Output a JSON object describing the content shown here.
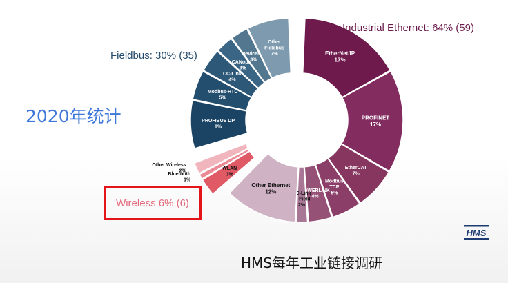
{
  "titles": {
    "left": "2020年统计",
    "bottom": "HMS每年工业链接调研"
  },
  "logo": {
    "text": "HMS"
  },
  "chart_data": {
    "type": "pie",
    "subtype": "donut",
    "groups": [
      {
        "name": "Industrial Ethernet",
        "label": "Industrial Ethernet: 64% (59)",
        "color": "#7a2454"
      },
      {
        "name": "Fieldbus",
        "label": "Fieldbus: 30% (35)",
        "color": "#1f4a6c"
      },
      {
        "name": "Wireless",
        "label": "Wireless 6% (6)",
        "color": "#e05565"
      }
    ],
    "slices": [
      {
        "name": "EtherNet/IP",
        "value": 17,
        "group": "Industrial Ethernet",
        "color": "#6e1a4d",
        "label_outside": false
      },
      {
        "name": "PROFINET",
        "value": 17,
        "group": "Industrial Ethernet",
        "color": "#822c5f",
        "label_outside": false
      },
      {
        "name": "EtherCAT",
        "value": 7,
        "group": "Industrial Ethernet",
        "color": "#86365f",
        "label_outside": false
      },
      {
        "name": "Modbus TCP",
        "value": 5,
        "group": "Industrial Ethernet",
        "color": "#8b3f68",
        "label_outside": false
      },
      {
        "name": "POWERLINK",
        "value": 4,
        "group": "Industrial Ethernet",
        "color": "#955176",
        "label_outside": false
      },
      {
        "name": "CC-Link IE Field",
        "value": 2,
        "group": "Industrial Ethernet",
        "color": "#a87796",
        "label_outside": false
      },
      {
        "name": "Other Ethernet",
        "value": 12,
        "group": "Industrial Ethernet",
        "color": "#cfb2c4",
        "label_outside": false
      },
      {
        "name": "WLAN",
        "value": 3,
        "group": "Wireless",
        "color": "#e05a66",
        "label_outside": false
      },
      {
        "name": "Bluetooth",
        "value": 1,
        "group": "Wireless",
        "color": "#eb8a95",
        "label_outside": true
      },
      {
        "name": "Other Wireless",
        "value": 2,
        "group": "Wireless",
        "color": "#f1b6bd",
        "label_outside": true
      },
      {
        "name": "PROFIBUS DP",
        "value": 8,
        "group": "Fieldbus",
        "color": "#1b4464",
        "label_outside": false
      },
      {
        "name": "Modbus-RTU",
        "value": 5,
        "group": "Fieldbus",
        "color": "#244e6e",
        "label_outside": false
      },
      {
        "name": "CC-Link",
        "value": 4,
        "group": "Fieldbus",
        "color": "#2d5878",
        "label_outside": false
      },
      {
        "name": "CANopen",
        "value": 3,
        "group": "Fieldbus",
        "color": "#3a6584",
        "label_outside": false
      },
      {
        "name": "DeviceNet",
        "value": 3,
        "group": "Fieldbus",
        "color": "#52778f",
        "label_outside": false
      },
      {
        "name": "Other Fieldbus",
        "value": 7,
        "group": "Fieldbus",
        "color": "#7e9aae",
        "label_outside": false
      }
    ],
    "title": "",
    "legend": "none"
  }
}
